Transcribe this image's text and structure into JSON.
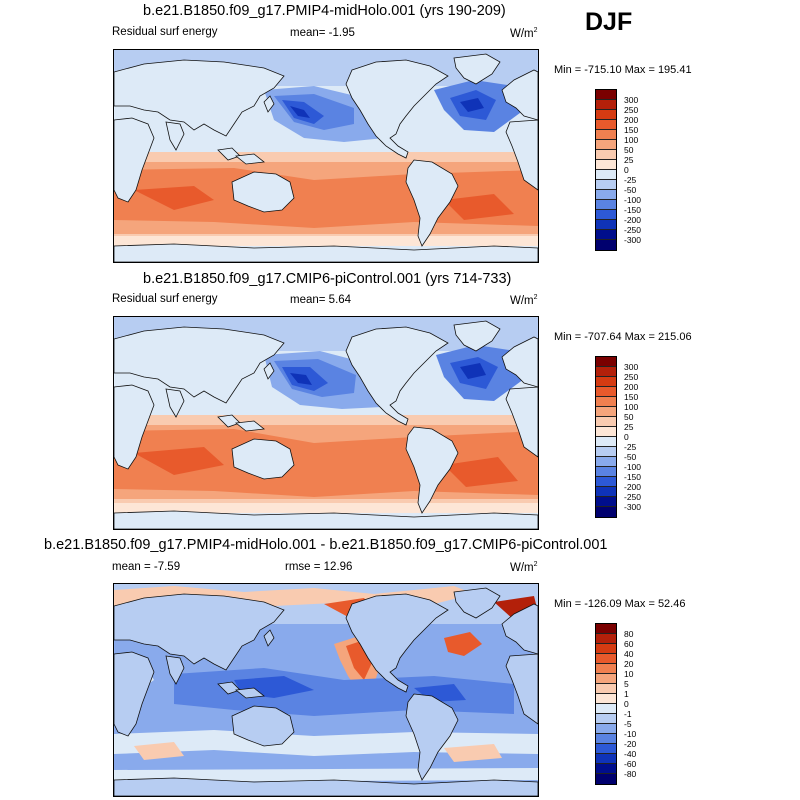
{
  "season": "DJF",
  "panels": [
    {
      "title": "b.e21.B1850.f09_g17.PMIP4-midHolo.001 (yrs 190-209)",
      "left_label": "Residual surf energy",
      "center_label": "mean=  -1.95",
      "units": "W/m",
      "units_sup": "2",
      "minmax": "Min = -715.10 Max = 195.41",
      "legend": {
        "labels": [
          "300",
          "250",
          "200",
          "150",
          "100",
          "50",
          "25",
          "0",
          "-25",
          "-50",
          "-100",
          "-150",
          "-200",
          "-250",
          "-300"
        ],
        "colors": [
          "#7a0000",
          "#b3200a",
          "#d53b12",
          "#e85a2c",
          "#f08050",
          "#f5a57c",
          "#f9cbb0",
          "#fde6d6",
          "#ddeaf7",
          "#b7cdf2",
          "#89aaec",
          "#5a83e2",
          "#2d59d6",
          "#0f33b8",
          "#000e8c",
          "#00006e"
        ]
      }
    },
    {
      "title": "b.e21.B1850.f09_g17.CMIP6-piControl.001 (yrs 714-733)",
      "left_label": "Residual surf energy",
      "center_label": "mean=  5.64",
      "units": "W/m",
      "units_sup": "2",
      "minmax": "Min = -707.64 Max = 215.06",
      "legend": {
        "labels": [
          "300",
          "250",
          "200",
          "150",
          "100",
          "50",
          "25",
          "0",
          "-25",
          "-50",
          "-100",
          "-150",
          "-200",
          "-250",
          "-300"
        ],
        "colors": [
          "#7a0000",
          "#b3200a",
          "#d53b12",
          "#e85a2c",
          "#f08050",
          "#f5a57c",
          "#f9cbb0",
          "#fde6d6",
          "#ddeaf7",
          "#b7cdf2",
          "#89aaec",
          "#5a83e2",
          "#2d59d6",
          "#0f33b8",
          "#000e8c",
          "#00006e"
        ]
      }
    },
    {
      "title": "b.e21.B1850.f09_g17.PMIP4-midHolo.001 - b.e21.B1850.f09_g17.CMIP6-piControl.001",
      "left_label": "mean =  -7.59",
      "center_label": "rmse =  12.96",
      "units": "W/m",
      "units_sup": "2",
      "minmax": "Min = -126.09 Max =  52.46",
      "legend": {
        "labels": [
          "80",
          "60",
          "40",
          "20",
          "10",
          "5",
          "1",
          "0",
          "-1",
          "-5",
          "-10",
          "-20",
          "-40",
          "-60",
          "-80"
        ],
        "colors": [
          "#7a0000",
          "#b3200a",
          "#d53b12",
          "#e85a2c",
          "#f08050",
          "#f5a57c",
          "#f9cbb0",
          "#fde6d6",
          "#ddeaf7",
          "#b7cdf2",
          "#89aaec",
          "#5a83e2",
          "#2d59d6",
          "#0f33b8",
          "#000e8c",
          "#00006e"
        ]
      }
    }
  ]
}
